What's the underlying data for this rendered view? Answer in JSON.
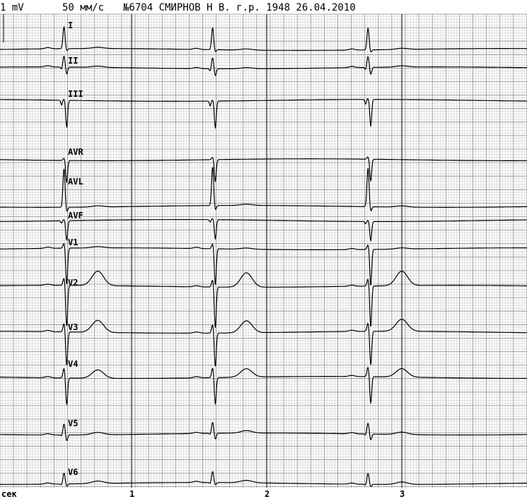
{
  "header": {
    "gain": "1 mV",
    "speed": "50 мм/с",
    "record_info": "№6704 СМИРНОВ Н В. г.р. 1948 26.04.2010"
  },
  "colors": {
    "grid_minor": "#c8c8c8",
    "grid_major": "#8a8a8a",
    "grid_second": "#000000",
    "trace": "#000000"
  },
  "chart_data": {
    "type": "line",
    "title": "",
    "xlabel": "сек",
    "ylabel": "",
    "x_unit_label": "сек",
    "xlim": [
      0,
      3.9
    ],
    "x_ticks": [
      {
        "value": 1,
        "label": "1"
      },
      {
        "value": 2,
        "label": "2"
      },
      {
        "value": 3,
        "label": "3"
      }
    ],
    "gain_mV": 1,
    "paper_speed_mm_s": 50,
    "beat_times_s": [
      0.5,
      1.6,
      2.75
    ],
    "grid": true,
    "series": [
      {
        "name": "I",
        "amp_r": 0.9,
        "amp_q": 0.0,
        "amp_s": 0.1,
        "amp_t": 0.05,
        "amp_p": 0.05
      },
      {
        "name": "II",
        "amp_r": 0.45,
        "amp_q": 0.1,
        "amp_s": 0.3,
        "amp_t": 0.05,
        "amp_p": 0.05
      },
      {
        "name": "III",
        "amp_r": 0.05,
        "amp_q": 0.2,
        "amp_s": 1.1,
        "amp_t": 0.0,
        "amp_p": 0.0
      },
      {
        "name": "AVR",
        "amp_r": 0.1,
        "amp_q": 0.0,
        "amp_s": 0.9,
        "amp_t": 0.0,
        "amp_p": 0.0
      },
      {
        "name": "AVL",
        "amp_r": 1.6,
        "amp_q": 0.0,
        "amp_s": 0.2,
        "amp_t": 0.05,
        "amp_p": 0.0
      },
      {
        "name": "AVF",
        "amp_r": 0.05,
        "amp_q": 0.1,
        "amp_s": 0.8,
        "amp_t": 0.0,
        "amp_p": 0.0
      },
      {
        "name": "V1",
        "amp_r": 0.2,
        "amp_q": 0.0,
        "amp_s": 1.5,
        "amp_t": 0.05,
        "amp_p": 0.05
      },
      {
        "name": "V2",
        "amp_r": 0.3,
        "amp_q": 0.0,
        "amp_s": 1.7,
        "amp_t": 0.6,
        "amp_p": 0.05
      },
      {
        "name": "V3",
        "amp_r": 0.35,
        "amp_q": 0.0,
        "amp_s": 1.4,
        "amp_t": 0.5,
        "amp_p": 0.05
      },
      {
        "name": "V4",
        "amp_r": 0.4,
        "amp_q": 0.0,
        "amp_s": 1.1,
        "amp_t": 0.35,
        "amp_p": 0.05
      },
      {
        "name": "V5",
        "amp_r": 0.45,
        "amp_q": 0.05,
        "amp_s": 0.25,
        "amp_t": 0.1,
        "amp_p": 0.05
      },
      {
        "name": "V6",
        "amp_r": 0.45,
        "amp_q": 0.05,
        "amp_s": 0.1,
        "amp_t": 0.1,
        "amp_p": 0.05
      }
    ]
  }
}
